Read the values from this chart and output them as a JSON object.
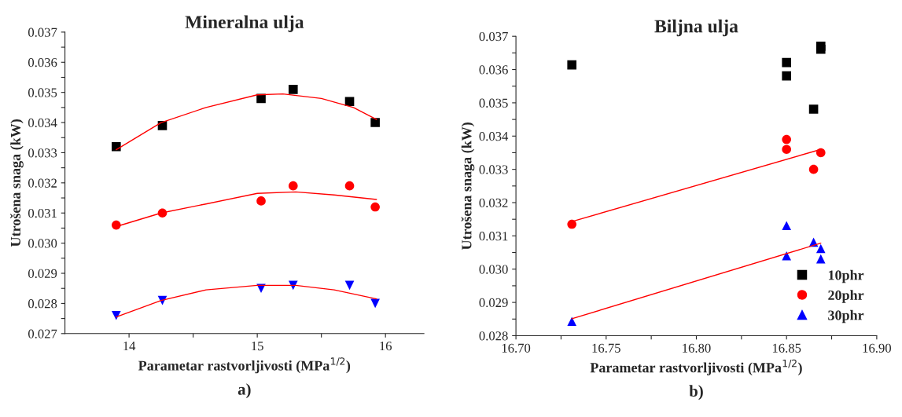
{
  "chart_data": [
    {
      "type": "scatter",
      "title": "Mineralna ulja",
      "xlabel": "Parametar rastvorljivosti (MPa$^{1/2}$)",
      "ylabel": "Utrošena snaga (kW)",
      "annotations": [
        "a)"
      ],
      "xlim": [
        13.5,
        16.3
      ],
      "xticks": [
        14,
        {
          "value": 14.5,
          "label": null
        },
        15,
        {
          "value": 15.5,
          "label": null
        },
        16
      ],
      "ylim": [
        0.027,
        0.037
      ],
      "yticks": [
        {
          "value": 0.027,
          "label": "0.027"
        },
        {
          "value": 0.0275,
          "label": null
        },
        {
          "value": 0.028,
          "label": "0.028"
        },
        {
          "value": 0.0285,
          "label": null
        },
        {
          "value": 0.029,
          "label": "0.029"
        },
        {
          "value": 0.0295,
          "label": null
        },
        {
          "value": 0.03,
          "label": "0.030"
        },
        {
          "value": 0.0305,
          "label": null
        },
        {
          "value": 0.031,
          "label": "0.031"
        },
        {
          "value": 0.0315,
          "label": null
        },
        {
          "value": 0.032,
          "label": "0.032"
        },
        {
          "value": 0.0325,
          "label": null
        },
        {
          "value": 0.033,
          "label": "0.033"
        },
        {
          "value": 0.0335,
          "label": null
        },
        {
          "value": 0.034,
          "label": "0.034"
        },
        {
          "value": 0.0345,
          "label": null
        },
        {
          "value": 0.035,
          "label": "0.035"
        },
        {
          "value": 0.0355,
          "label": null
        },
        {
          "value": 0.036,
          "label": "0.036"
        },
        {
          "value": 0.0365,
          "label": null
        },
        {
          "value": 0.037,
          "label": "0.037"
        }
      ],
      "grid": false,
      "legend": false,
      "series": [
        {
          "color": "#000000",
          "marker": "square",
          "x": [
            13.9,
            14.26,
            15.03,
            15.28,
            15.72,
            15.92
          ],
          "values": [
            0.0332,
            0.0339,
            0.0348,
            0.0351,
            0.0347,
            0.034
          ]
        },
        {
          "color": "#ff0000",
          "marker": "circle",
          "x": [
            13.9,
            14.26,
            15.03,
            15.28,
            15.72,
            15.92
          ],
          "values": [
            0.0306,
            0.031,
            0.0314,
            0.0319,
            0.0319,
            0.0312
          ]
        },
        {
          "color": "#0000ff",
          "marker": "triangle_down",
          "x": [
            13.9,
            14.26,
            15.03,
            15.28,
            15.72,
            15.92
          ],
          "values": [
            0.0276,
            0.0281,
            0.0285,
            0.0286,
            0.0286,
            0.028
          ]
        },
        {
          "type": "line",
          "color": "#ff0000",
          "marker": "none",
          "x": [
            13.9,
            14.25,
            14.6,
            15.0,
            15.2,
            15.5,
            15.75,
            15.93
          ],
          "values": [
            0.0331,
            0.034,
            0.0345,
            0.03492,
            0.03495,
            0.0348,
            0.0345,
            0.0341
          ]
        },
        {
          "type": "line",
          "color": "#ff0000",
          "marker": "none",
          "x": [
            13.9,
            14.25,
            14.6,
            15.0,
            15.3,
            15.6,
            15.93
          ],
          "values": [
            0.03055,
            0.031,
            0.0313,
            0.03165,
            0.0317,
            0.0316,
            0.03145
          ]
        },
        {
          "type": "line",
          "color": "#ff0000",
          "marker": "none",
          "x": [
            13.9,
            14.25,
            14.6,
            15.0,
            15.3,
            15.6,
            15.93
          ],
          "values": [
            0.02755,
            0.0281,
            0.02845,
            0.0286,
            0.0286,
            0.02845,
            0.02815
          ]
        }
      ]
    },
    {
      "type": "scatter",
      "title": "Biljna ulja",
      "xlabel": "Parametar rastvorljivosti (MPa$^{1/2}$)",
      "ylabel": "Utrošena snaga (kW)",
      "annotations": [
        "b)"
      ],
      "xlim": [
        16.7,
        16.9
      ],
      "xticks": [
        {
          "value": 16.7,
          "label": "16.70"
        },
        {
          "value": 16.725,
          "label": null
        },
        {
          "value": 16.75,
          "label": "16.75"
        },
        {
          "value": 16.775,
          "label": null
        },
        {
          "value": 16.8,
          "label": "16.80"
        },
        {
          "value": 16.825,
          "label": null
        },
        {
          "value": 16.85,
          "label": "16.85"
        },
        {
          "value": 16.875,
          "label": null
        },
        {
          "value": 16.9,
          "label": "16.90"
        }
      ],
      "ylim": [
        0.028,
        0.037
      ],
      "yticks": [
        {
          "value": 0.028,
          "label": "0.028"
        },
        {
          "value": 0.0285,
          "label": null
        },
        {
          "value": 0.029,
          "label": "0.029"
        },
        {
          "value": 0.0295,
          "label": null
        },
        {
          "value": 0.03,
          "label": "0.030"
        },
        {
          "value": 0.0305,
          "label": null
        },
        {
          "value": 0.031,
          "label": "0.031"
        },
        {
          "value": 0.0315,
          "label": null
        },
        {
          "value": 0.032,
          "label": "0.032"
        },
        {
          "value": 0.0325,
          "label": null
        },
        {
          "value": 0.033,
          "label": "0.033"
        },
        {
          "value": 0.0335,
          "label": null
        },
        {
          "value": 0.034,
          "label": "0.034"
        },
        {
          "value": 0.0345,
          "label": null
        },
        {
          "value": 0.035,
          "label": "0.035"
        },
        {
          "value": 0.0355,
          "label": null
        },
        {
          "value": 0.036,
          "label": "0.036"
        },
        {
          "value": 0.0365,
          "label": null
        },
        {
          "value": 0.037,
          "label": "0.037"
        }
      ],
      "grid": false,
      "legend": "bottom right",
      "series": [
        {
          "name": "10phr",
          "color": "#000000",
          "marker": "square",
          "x": [
            16.731,
            16.85,
            16.85,
            16.865,
            16.869,
            16.869
          ],
          "values": [
            0.03614,
            0.03621,
            0.03581,
            0.03481,
            0.0367,
            0.03661
          ]
        },
        {
          "name": "20phr",
          "color": "#ff0000",
          "marker": "circle",
          "x": [
            16.731,
            16.85,
            16.85,
            16.865,
            16.869
          ],
          "values": [
            0.03135,
            0.0339,
            0.0336,
            0.033,
            0.0335
          ]
        },
        {
          "name": "30phr",
          "color": "#0000ff",
          "marker": "triangle",
          "x": [
            16.731,
            16.85,
            16.85,
            16.865,
            16.869,
            16.869
          ],
          "values": [
            0.02843,
            0.0304,
            0.03131,
            0.03081,
            0.03062,
            0.03031
          ]
        },
        {
          "type": "line",
          "color": "#ff0000",
          "marker": "none",
          "x": [
            16.731,
            16.869
          ],
          "values": [
            0.03143,
            0.0336
          ]
        },
        {
          "type": "line",
          "color": "#ff0000",
          "marker": "none",
          "x": [
            16.731,
            16.869
          ],
          "values": [
            0.02851,
            0.03078
          ]
        }
      ]
    }
  ]
}
